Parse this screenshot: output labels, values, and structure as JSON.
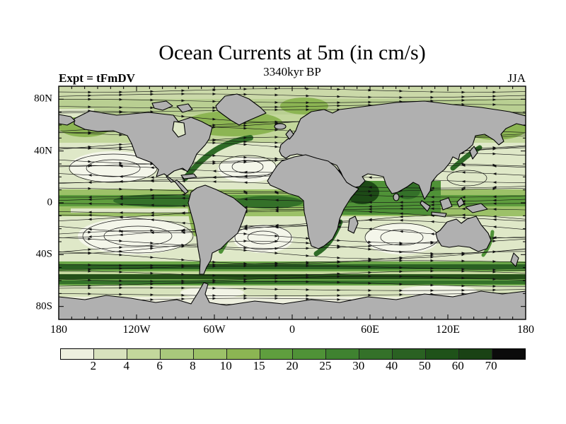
{
  "header": {
    "title": "Ocean Currents at 5m (in cm/s)",
    "subtitle": "3340kyr BP",
    "experiment": "Expt = tFmDV",
    "season": "JJA"
  },
  "axes": {
    "lat_labels": [
      "80N",
      "40N",
      "0",
      "40S",
      "80S"
    ],
    "lon_labels": [
      "180",
      "120W",
      "60W",
      "0",
      "60E",
      "120E",
      "180"
    ]
  },
  "colorbar": {
    "tick_labels": [
      "2",
      "4",
      "6",
      "8",
      "10",
      "15",
      "20",
      "25",
      "30",
      "40",
      "50",
      "60",
      "70"
    ],
    "segment_colors": [
      "#eef0df",
      "#d8e2bd",
      "#c3d79c",
      "#a9c97c",
      "#9cc168",
      "#8cb553",
      "#5f9e3e",
      "#4f9237",
      "#3f8230",
      "#347129",
      "#2a6122",
      "#1f5219",
      "#1a4214",
      "#0b0b0b"
    ]
  },
  "map": {
    "land_color": "#b0b0b0",
    "ocean_base_color": "#eef0df",
    "coastline_color": "#000000",
    "streamline_color": "#111111"
  },
  "chart_data": {
    "type": "heatmap",
    "title": "Ocean Currents at 5m (in cm/s)",
    "subtitle": "3340kyr BP",
    "experiment": "Expt = tFmDV",
    "season": "JJA",
    "units": "cm/s",
    "projection": "equirectangular world map",
    "lon_range_deg": [
      -180,
      180
    ],
    "lat_range_deg": [
      -90,
      90
    ],
    "lon_tick_labels": [
      "180",
      "120W",
      "60W",
      "0",
      "60E",
      "120E",
      "180"
    ],
    "lat_tick_labels": [
      "80N",
      "40N",
      "0",
      "40S",
      "80S"
    ],
    "color_scale": {
      "boundary_levels_cm_per_s": [
        2,
        4,
        6,
        8,
        10,
        15,
        20,
        25,
        30,
        40,
        50,
        60,
        70
      ],
      "colors_low_to_high": [
        "#eef0df",
        "#d8e2bd",
        "#c3d79c",
        "#a9c97c",
        "#9cc168",
        "#8cb553",
        "#5f9e3e",
        "#4f9237",
        "#3f8230",
        "#347129",
        "#2a6122",
        "#1f5219",
        "#1a4214",
        "#0b0b0b"
      ]
    },
    "overlay": "black streamlines with arrowheads showing current direction over speed shading",
    "land_fill": "gray (#b0b0b0) with black coastlines",
    "legend_position": "horizontal colorbar below map",
    "notable_features": [
      "dark green high-speed equatorial current band in all ocean basins",
      "very dark Somali/Indian Ocean monsoon current (JJA)",
      "dark Antarctic Circumpolar Current band near 45-60S",
      "western boundary currents (Gulf Stream, Kuroshio, Agulhas, Brazil)",
      "pale low-speed subtropical gyre centers",
      "gray Antarctica band along bottom edge"
    ]
  }
}
